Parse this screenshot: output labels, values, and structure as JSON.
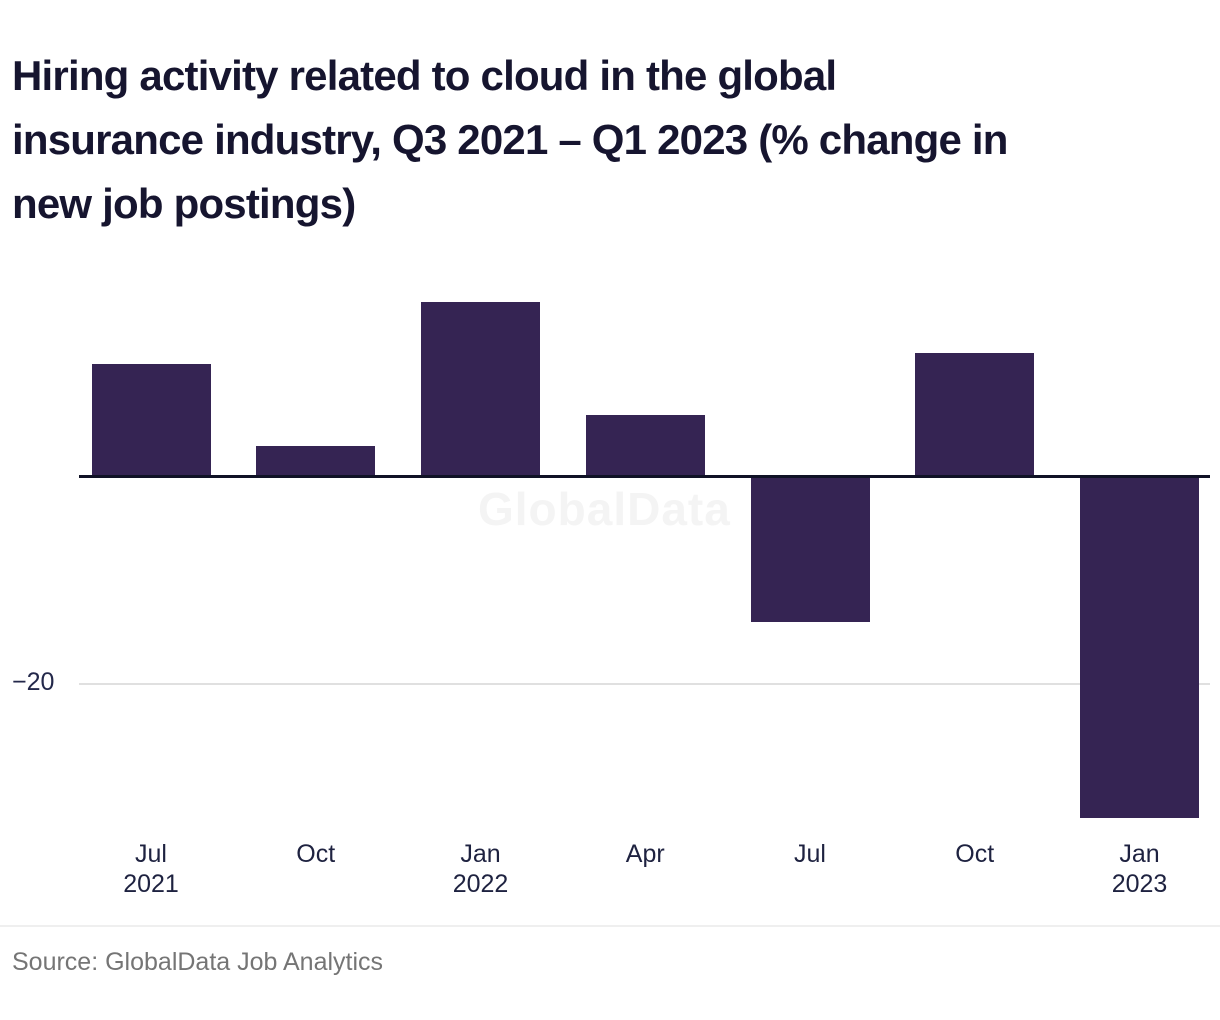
{
  "title_lines": [
    "Hiring activity related to cloud in the global",
    "insurance industry, Q3 2021 – Q1 2023 (% change in",
    "new job postings)"
  ],
  "watermark": "GlobalData",
  "source": "Source: GlobalData Job Analytics",
  "y_axis": {
    "tick_label": "−20"
  },
  "colors": {
    "bar": "#352453",
    "title_text": "#16152F",
    "axis_line": "#101226",
    "tick_text": "#23284A",
    "gridline": "#E0E0E0",
    "watermark": "#F4F4F4",
    "source_text": "#757575",
    "background": "#FFFFFF"
  },
  "chart_data": {
    "type": "bar",
    "title": "Hiring activity related to cloud in the global insurance industry, Q3 2021 – Q1 2023 (% change in new job postings)",
    "categories": [
      "Jul\n2021",
      "Oct",
      "Jan\n2022",
      "Apr",
      "Jul",
      "Oct",
      "Jan\n2023"
    ],
    "values": [
      11,
      3,
      17,
      6,
      -14,
      12,
      -33
    ],
    "xlabel": "",
    "ylabel": "% change in new job postings",
    "ylim": [
      -35,
      18
    ],
    "yticks": [
      -20
    ],
    "grid": "single horizontal gridline at y = -20",
    "legend": "none",
    "baseline": 0,
    "watermark": "GlobalData",
    "source": "Source: GlobalData Job Analytics"
  }
}
